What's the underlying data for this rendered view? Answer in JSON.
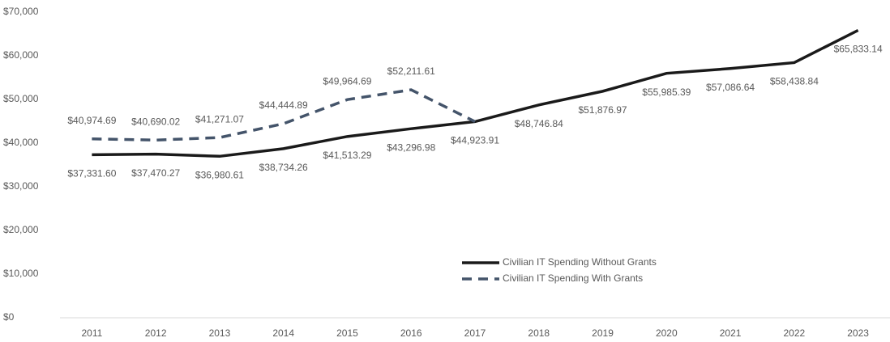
{
  "chart_data": {
    "type": "line",
    "categories": [
      "2011",
      "2012",
      "2013",
      "2014",
      "2015",
      "2016",
      "2017",
      "2018",
      "2019",
      "2020",
      "2021",
      "2022",
      "2023"
    ],
    "series": [
      {
        "name": "Civilian IT Spending Without Grants",
        "color": "#1a1a1a",
        "dash": false,
        "values": [
          37331.6,
          37470.27,
          36980.61,
          38734.26,
          41513.29,
          43296.98,
          44923.91,
          48746.84,
          51876.97,
          55985.39,
          57086.64,
          58438.84,
          65833.14
        ],
        "value_labels": [
          "$37,331.60",
          "$37,470.27",
          "$36,980.61",
          "$38,734.26",
          "$41,513.29",
          "$43,296.98",
          "$44,923.91",
          "$48,746.84",
          "$51,876.97",
          "$55,985.39",
          "$57,086.64",
          "$58,438.84",
          "$65,833.14"
        ],
        "label_side": "below"
      },
      {
        "name": "Civilian IT Spending With Grants",
        "color": "#44546a",
        "dash": true,
        "values": [
          40974.69,
          40690.02,
          41271.07,
          44444.89,
          49964.69,
          52211.61,
          44923.91,
          null,
          null,
          null,
          null,
          null,
          null
        ],
        "value_labels": [
          "$40,974.69",
          "$40,690.02",
          "$41,271.07",
          "$44,444.89",
          "$49,964.69",
          "$52,211.61",
          null,
          null,
          null,
          null,
          null,
          null,
          null
        ],
        "label_side": "above"
      }
    ],
    "ylim": [
      0,
      70000
    ],
    "yticks": [
      {
        "value": 0,
        "label": "$0"
      },
      {
        "value": 10000,
        "label": "$10,000"
      },
      {
        "value": 20000,
        "label": "$20,000"
      },
      {
        "value": 30000,
        "label": "$30,000"
      },
      {
        "value": 40000,
        "label": "$40,000"
      },
      {
        "value": 50000,
        "label": "$50,000"
      },
      {
        "value": 60000,
        "label": "$60,000"
      },
      {
        "value": 70000,
        "label": "$70,000"
      }
    ],
    "grid": false,
    "legend": "lower-center"
  }
}
